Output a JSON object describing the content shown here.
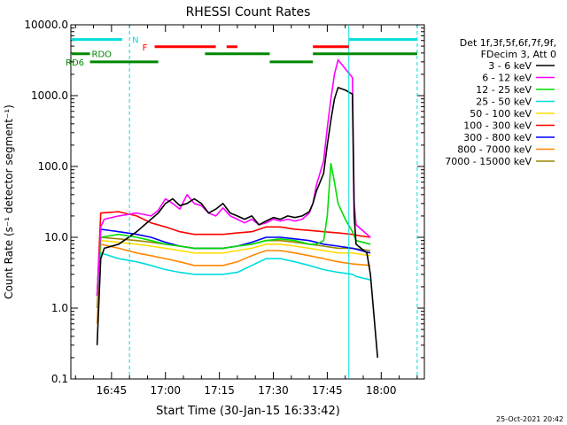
{
  "chart_data": {
    "type": "line",
    "title": "RHESSI Count Rates",
    "xlabel": "Start Time (30-Jan-15 16:33:42)",
    "ylabel": "Count Rate (s⁻¹ detector segment⁻¹)",
    "y_scale": "log",
    "ylim": [
      0.1,
      10000
    ],
    "xlim": [
      "16:33:42",
      "18:12"
    ],
    "x_ticks": [
      "16:45",
      "17:00",
      "17:15",
      "17:30",
      "17:45",
      "18:00"
    ],
    "x_tick_minutes": [
      45,
      60,
      75,
      90,
      105,
      120
    ],
    "y_ticks": [
      0.1,
      1,
      10,
      100,
      1000,
      10000
    ],
    "y_tick_labels": [
      "0.1",
      "1.0",
      "10.0",
      "100.0",
      "1000.0",
      "10000.0"
    ],
    "legend_header": [
      "Det 1f,3f,5f,6f,7f,9f,",
      "FDecim 3, Att 0"
    ],
    "legend_placement": "right",
    "timestamp": "25-Oct-2021 20:42",
    "series": [
      {
        "name": "3 - 6 keV",
        "color": "#000000",
        "t": [
          41,
          42,
          43,
          47,
          52,
          56,
          58,
          60,
          62,
          64,
          66,
          68,
          70,
          72,
          74,
          76,
          78,
          80,
          82,
          84,
          86,
          88,
          90,
          92,
          94,
          96,
          98,
          100,
          101,
          102,
          104,
          105,
          106,
          107,
          108,
          110,
          112,
          112.5,
          113,
          116,
          117,
          119
        ],
        "v": [
          0.3,
          5,
          7,
          8,
          12,
          18,
          22,
          30,
          35,
          28,
          30,
          35,
          30,
          22,
          25,
          30,
          22,
          20,
          18,
          20,
          15,
          17,
          19,
          18,
          20,
          19,
          20,
          23,
          30,
          45,
          80,
          200,
          450,
          900,
          1300,
          1200,
          1050,
          20,
          8,
          6,
          3,
          0.2
        ]
      },
      {
        "name": "6 - 12 keV",
        "color": "#ff00ff",
        "t": [
          41,
          42,
          43,
          47,
          52,
          56,
          58,
          60,
          62,
          64,
          66,
          68,
          70,
          72,
          74,
          76,
          78,
          80,
          82,
          84,
          86,
          88,
          90,
          92,
          94,
          96,
          98,
          100,
          101,
          102,
          104,
          105,
          106,
          107,
          108,
          110,
          112,
          112.5,
          113,
          117
        ],
        "v": [
          1.5,
          14,
          18,
          20,
          22,
          20,
          24,
          35,
          30,
          25,
          40,
          30,
          28,
          22,
          20,
          26,
          20,
          18,
          16,
          18,
          15,
          16,
          18,
          17,
          18,
          17,
          18,
          22,
          30,
          55,
          120,
          350,
          900,
          2000,
          3200,
          2400,
          1800,
          30,
          15,
          10
        ]
      },
      {
        "name": "12 - 25 keV",
        "color": "#00dd00",
        "t": [
          41,
          42,
          47,
          52,
          56,
          60,
          64,
          68,
          72,
          76,
          80,
          84,
          88,
          92,
          96,
          100,
          102,
          104,
          105,
          106,
          107,
          108,
          110,
          112,
          113,
          117
        ],
        "v": [
          1.5,
          10,
          11,
          10,
          9,
          8,
          7.5,
          7,
          7,
          7,
          7.5,
          8,
          9,
          9.5,
          9,
          8,
          8,
          9,
          20,
          110,
          60,
          30,
          18,
          12,
          9,
          8
        ]
      },
      {
        "name": "25 - 50 keV",
        "color": "#00dddd",
        "t": [
          41,
          42,
          47,
          52,
          56,
          60,
          64,
          68,
          72,
          76,
          80,
          84,
          88,
          92,
          96,
          100,
          104,
          108,
          112,
          113,
          117
        ],
        "v": [
          1.5,
          6,
          5,
          4.5,
          4,
          3.5,
          3.2,
          3,
          3,
          3,
          3.2,
          4,
          5,
          5,
          4.5,
          4,
          3.5,
          3.2,
          3,
          2.8,
          2.5
        ]
      },
      {
        "name": "50 - 100 keV",
        "color": "#ffdd00",
        "t": [
          41,
          42,
          47,
          52,
          56,
          60,
          64,
          68,
          72,
          76,
          80,
          84,
          88,
          92,
          96,
          100,
          104,
          108,
          112,
          117
        ],
        "v": [
          1.5,
          9,
          8.5,
          8,
          7.5,
          7,
          6.5,
          6,
          6,
          6,
          6.5,
          7,
          8,
          8,
          7.5,
          7,
          6.5,
          6,
          6,
          5.5
        ]
      },
      {
        "name": "100 - 300 keV",
        "color": "#ff0000",
        "t": [
          41,
          42,
          47,
          52,
          56,
          60,
          64,
          68,
          72,
          76,
          80,
          84,
          88,
          92,
          96,
          100,
          104,
          108,
          112,
          114,
          117
        ],
        "v": [
          1.5,
          22,
          23,
          20,
          16,
          14,
          12,
          11,
          11,
          11,
          11.5,
          12,
          14,
          14,
          13,
          12.5,
          12,
          11.5,
          11,
          10.5,
          10
        ]
      },
      {
        "name": "300 - 800 keV",
        "color": "#0000ff",
        "t": [
          41,
          42,
          47,
          52,
          56,
          60,
          64,
          68,
          72,
          76,
          80,
          84,
          88,
          92,
          96,
          100,
          104,
          108,
          112,
          117
        ],
        "v": [
          1.5,
          13,
          12,
          11,
          10,
          8.5,
          7.5,
          7,
          7,
          7,
          7.5,
          8.5,
          10,
          10,
          9.5,
          9,
          8,
          7.5,
          7,
          6
        ]
      },
      {
        "name": "800 - 7000 keV",
        "color": "#ff8800",
        "t": [
          41,
          42,
          47,
          52,
          56,
          60,
          64,
          68,
          72,
          76,
          80,
          84,
          88,
          92,
          96,
          100,
          104,
          108,
          112,
          117
        ],
        "v": [
          0.6,
          8,
          7,
          6,
          5.5,
          5,
          4.5,
          4,
          4,
          4,
          4.5,
          5.5,
          6.5,
          6.5,
          6,
          5.5,
          5,
          4.5,
          4.2,
          4
        ]
      },
      {
        "name": "7000 - 15000 keV",
        "color": "#998800",
        "t": [
          41,
          42,
          47,
          52,
          56,
          60,
          64,
          68,
          72,
          76,
          80,
          84,
          88,
          92,
          96,
          100,
          104,
          108,
          112,
          117
        ],
        "v": [
          1,
          10,
          9.5,
          9,
          8.5,
          8,
          7.5,
          7,
          7,
          7,
          7.5,
          8,
          9,
          9,
          8.5,
          8,
          7.5,
          7,
          7,
          6.5
        ]
      }
    ],
    "vertical_markers": [
      {
        "t": 50,
        "style": "dashed",
        "color": "#00dddd"
      },
      {
        "t": 111,
        "style": "solid",
        "color": "#00dddd"
      },
      {
        "t": 130,
        "style": "dashed",
        "color": "#00dddd"
      }
    ],
    "annotations": [
      {
        "label": "N",
        "color": "#00dddd",
        "y": 6200,
        "bars": [
          [
            33.7,
            48
          ],
          [
            111,
            130
          ]
        ]
      },
      {
        "label": "F",
        "color": "#ff0000",
        "y": 4900,
        "bars": [
          [
            57,
            74
          ],
          [
            77,
            80
          ],
          [
            101,
            111
          ]
        ]
      },
      {
        "label": "RDO",
        "color": "#008800",
        "y": 3900,
        "bars": [
          [
            33.7,
            39
          ],
          [
            71,
            89
          ],
          [
            101,
            130
          ]
        ]
      },
      {
        "label": "RD6",
        "color": "#008800",
        "y": 3000,
        "bars": [
          [
            39,
            58
          ],
          [
            89,
            101
          ]
        ]
      }
    ]
  }
}
